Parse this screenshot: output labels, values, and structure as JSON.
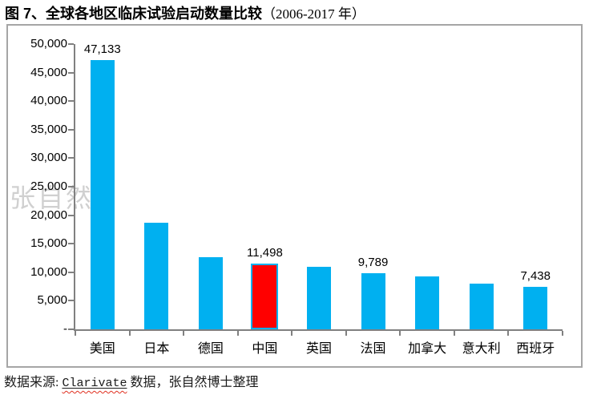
{
  "title": {
    "main": "图 7、全球各地区临床试验启动数量比较",
    "period": "（2006-2017 年）"
  },
  "watermark_text": "张自然",
  "footer": {
    "prefix": "数据来源: ",
    "source_word": "Clarivate",
    "suffix": " 数据，张自然博士整理"
  },
  "colors": {
    "bar": "#00B0F0",
    "highlight_fill": "#FF0000",
    "highlight_border": "#00B0F0",
    "axis": "#808080",
    "frame_border": "#A6A6A6",
    "watermark": "#969696",
    "spellcheck_wave": "#E03020"
  },
  "chart_data": {
    "type": "bar",
    "title": "全球各地区临床试验启动数量比较（2006-2017 年）",
    "categories": [
      "美国",
      "日本",
      "德国",
      "中国",
      "英国",
      "法国",
      "加拿大",
      "意大利",
      "西班牙"
    ],
    "values": [
      47133,
      18700,
      12600,
      11498,
      10900,
      9789,
      9250,
      8000,
      7438
    ],
    "data_labels": [
      "47,133",
      null,
      null,
      "11,498",
      null,
      "9,789",
      null,
      null,
      "7,438"
    ],
    "highlight_index": 3,
    "xlabel": "",
    "ylabel": "",
    "ylim": [
      0,
      50000
    ],
    "ytick_step": 5000,
    "ytick_labels_top_down": [
      "50,000",
      "45,000",
      "40,000",
      "35,000",
      "30,000",
      "25,000",
      "20,000",
      "15,000",
      "10,000",
      "5,000",
      "-"
    ],
    "gridlines": false,
    "legend_position": "none"
  }
}
